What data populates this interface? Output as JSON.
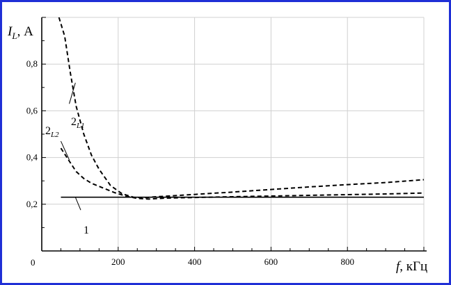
{
  "chart_data": {
    "type": "line",
    "title": "",
    "xlabel_var": "f",
    "xlabel_unit": ", кГц",
    "ylabel_var": "I",
    "ylabel_sub": "L",
    "ylabel_unit": ", А",
    "origin_label": "0",
    "xlim": [
      0,
      1000
    ],
    "ylim": [
      0,
      1
    ],
    "grid": true,
    "legend": "none",
    "x_ticks": [
      200,
      400,
      600,
      800
    ],
    "x_tick_labels": [
      "200",
      "400",
      "600",
      "800"
    ],
    "y_ticks": [
      0.2,
      0.4,
      0.6,
      0.8
    ],
    "y_tick_labels": [
      "0,2",
      "0,4",
      "0,6",
      "0,8"
    ],
    "series": [
      {
        "label": "1",
        "style": "solid",
        "x": [
          50,
          1000
        ],
        "y": [
          0.23,
          0.23
        ]
      },
      {
        "label_main": "2",
        "label_sub": "L1",
        "style": "dashed",
        "x": [
          45,
          60,
          75,
          90,
          110,
          130,
          150,
          180,
          210,
          240,
          270,
          300,
          350,
          400,
          500,
          600,
          700,
          800,
          900,
          1000
        ],
        "y": [
          1.0,
          0.92,
          0.76,
          0.62,
          0.5,
          0.41,
          0.35,
          0.28,
          0.245,
          0.23,
          0.228,
          0.232,
          0.237,
          0.242,
          0.252,
          0.263,
          0.274,
          0.284,
          0.293,
          0.305
        ]
      },
      {
        "label_main": "2",
        "label_sub": "L2",
        "style": "dashed",
        "x": [
          50,
          70,
          90,
          110,
          130,
          160,
          190,
          220,
          250,
          280,
          320,
          400,
          500,
          600,
          700,
          800,
          900,
          1000
        ],
        "y": [
          0.44,
          0.39,
          0.34,
          0.31,
          0.29,
          0.27,
          0.25,
          0.235,
          0.225,
          0.222,
          0.226,
          0.229,
          0.232,
          0.235,
          0.238,
          0.241,
          0.244,
          0.248
        ]
      }
    ]
  }
}
